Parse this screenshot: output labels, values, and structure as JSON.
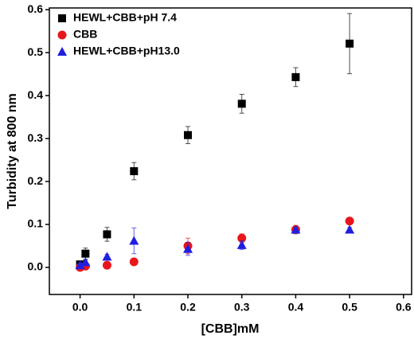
{
  "chart_data": {
    "type": "scatter",
    "xlabel": "[CBB]mM",
    "ylabel": "Turbidity at 800 nm",
    "xlim": [
      -0.057,
      0.615
    ],
    "ylim": [
      -0.063,
      0.604
    ],
    "xticks": [
      {
        "value": 0,
        "label": "0.0"
      },
      0.1,
      0.2,
      0.3,
      0.4,
      0.5,
      0.6
    ],
    "yticks": [
      {
        "value": 0,
        "label": "0.0"
      },
      0.1,
      0.2,
      0.3,
      0.4,
      0.5,
      0.6
    ],
    "legend": "upper left",
    "series": [
      {
        "name": "HEWL+CBB+pH 7.4",
        "color": "#000000",
        "marker": "square",
        "x": [
          0,
          0.01,
          0.05,
          0.1,
          0.2,
          0.3,
          0.4,
          0.5
        ],
        "values": [
          0.007,
          0.032,
          0.077,
          0.224,
          0.308,
          0.381,
          0.443,
          0.521
        ],
        "errors": [
          0.005,
          0.013,
          0.016,
          0.02,
          0.02,
          0.022,
          0.022,
          0.07
        ]
      },
      {
        "name": "CBB",
        "color": "#e8161b",
        "marker": "circle",
        "x": [
          0,
          0.01,
          0.05,
          0.1,
          0.2,
          0.3,
          0.4,
          0.5
        ],
        "values": [
          0.0,
          0.003,
          0.005,
          0.013,
          0.05,
          0.068,
          0.088,
          0.108
        ],
        "errors": [
          0.003,
          0.003,
          0.003,
          0.003,
          0.018,
          0.01,
          0.01,
          0.004
        ]
      },
      {
        "name": "HEWL+CBB+pH13.0",
        "color": "#1f1fe0",
        "marker": "triangle",
        "x": [
          0,
          0.01,
          0.05,
          0.1,
          0.2,
          0.3,
          0.4,
          0.5
        ],
        "values": [
          0.005,
          0.012,
          0.025,
          0.062,
          0.043,
          0.052,
          0.088,
          0.088
        ],
        "errors": [
          0.005,
          0.005,
          0.005,
          0.03,
          0.015,
          0.01,
          0.005,
          0.005
        ]
      }
    ]
  }
}
